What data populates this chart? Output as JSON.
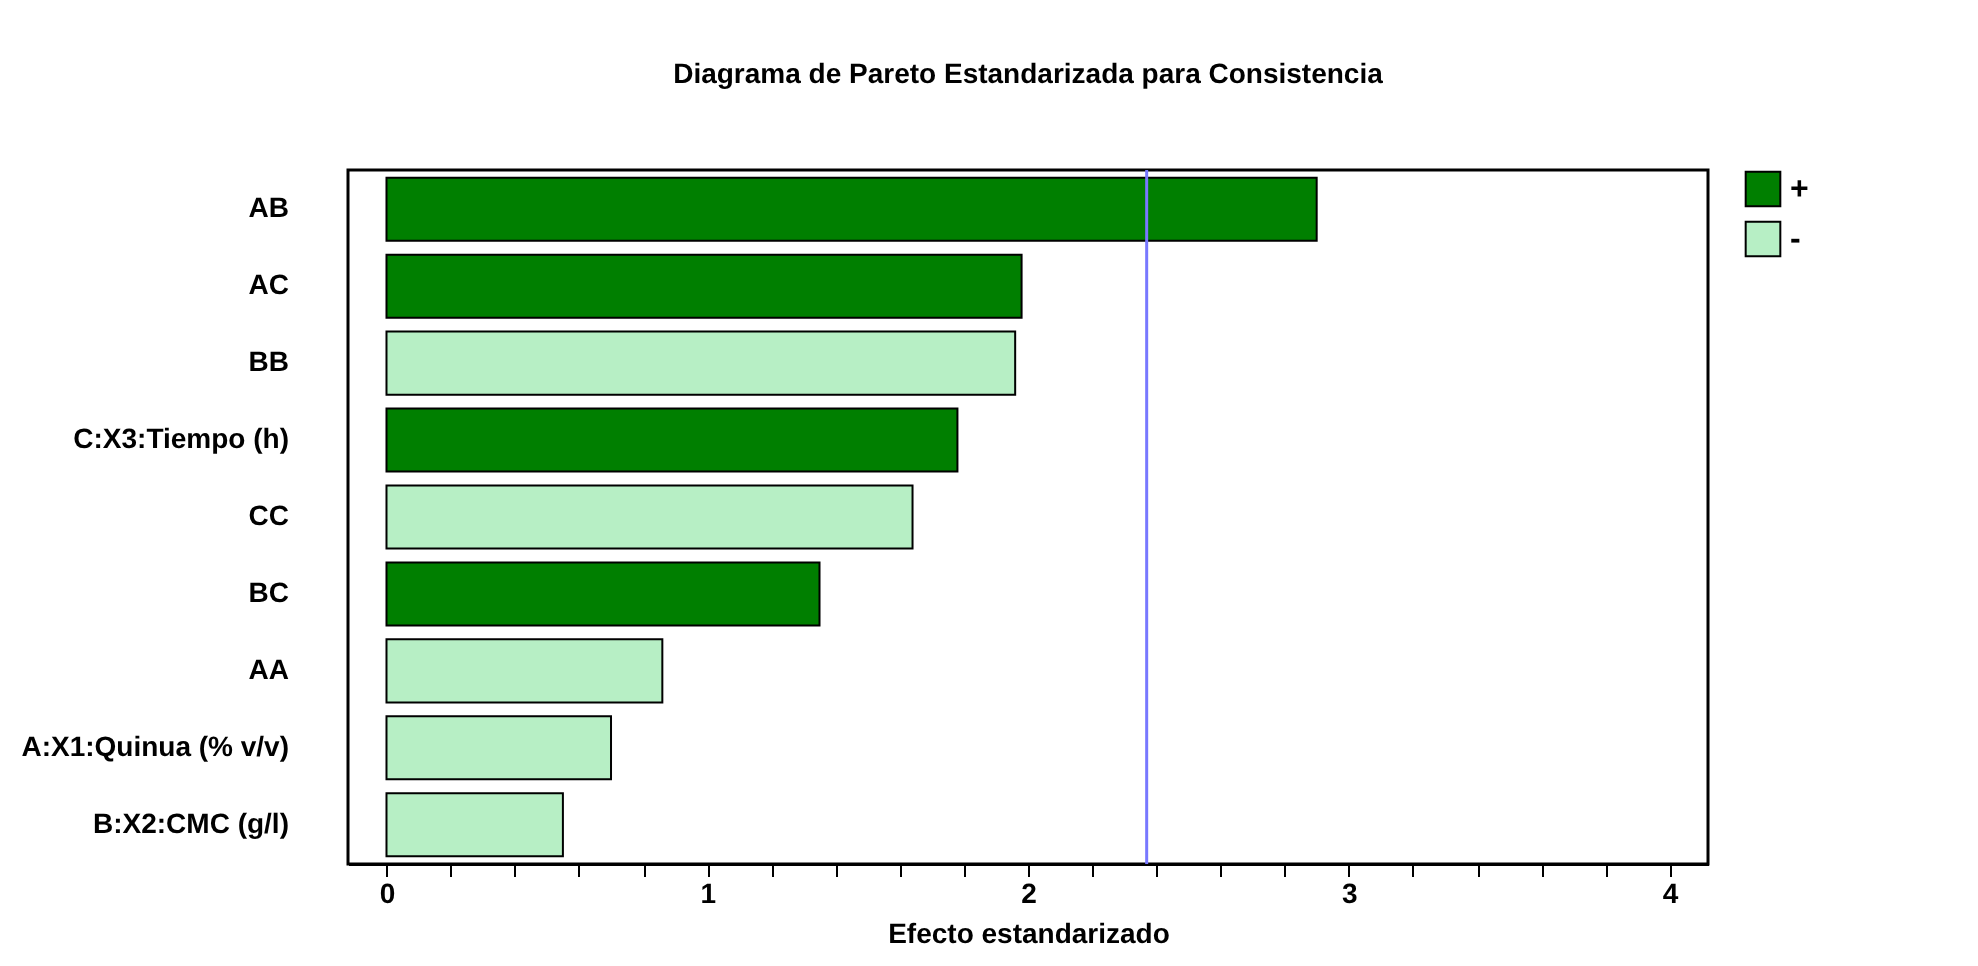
{
  "chart_data": {
    "type": "bar",
    "orientation": "horizontal",
    "title": "Diagrama de Pareto Estandarizada para Consistencia",
    "xlabel": "Efecto estandarizado",
    "categories": [
      "AB",
      "AC",
      "BB",
      "C:X3:Tiempo (h)",
      "CC",
      "BC",
      "AA",
      "A:X1:Quinua (% v/v)",
      "B:X2:CMC (g/l)"
    ],
    "series": [
      {
        "name": "+",
        "color": "#007f00",
        "values": [
          2.9,
          1.98,
          null,
          1.78,
          null,
          1.35,
          null,
          null,
          null
        ]
      },
      {
        "name": "-",
        "color": "#b7efc5",
        "values": [
          null,
          null,
          1.96,
          null,
          1.64,
          null,
          0.86,
          0.7,
          0.55
        ]
      }
    ],
    "xlim": [
      -0.12,
      4.12
    ],
    "xticks": [
      0,
      {
        "value": 0.2,
        "label": null
      },
      {
        "value": 0.4,
        "label": null
      },
      {
        "value": 0.6,
        "label": null
      },
      {
        "value": 0.8,
        "label": null
      },
      1,
      {
        "value": 1.2,
        "label": null
      },
      {
        "value": 1.4,
        "label": null
      },
      {
        "value": 1.6,
        "label": null
      },
      {
        "value": 1.8,
        "label": null
      },
      2,
      {
        "value": 2.2,
        "label": null
      },
      {
        "value": 2.4,
        "label": null
      },
      {
        "value": 2.6,
        "label": null
      },
      {
        "value": 2.8,
        "label": null
      },
      3,
      {
        "value": 3.2,
        "label": null
      },
      {
        "value": 3.4,
        "label": null
      },
      {
        "value": 3.6,
        "label": null
      },
      {
        "value": 3.8,
        "label": null
      },
      4
    ],
    "ref_lines": [
      {
        "axis": "x",
        "value": 2.37,
        "color": "#7878ff"
      }
    ],
    "legend": "top right",
    "grid": false
  }
}
